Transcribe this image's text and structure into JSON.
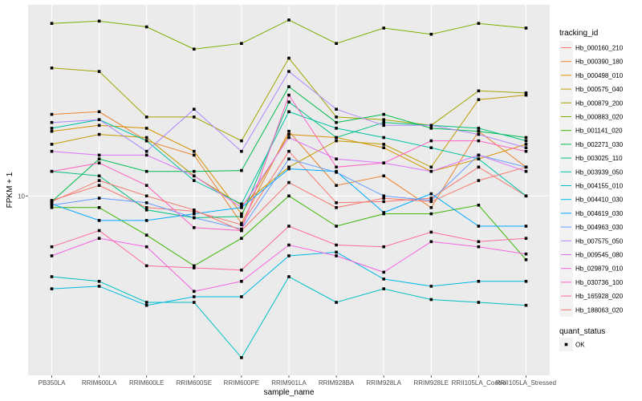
{
  "chart_data": {
    "type": "line",
    "xlabel": "sample_name",
    "ylabel": "FPKM + 1",
    "y_scale": "log",
    "y_ticks": [
      10
    ],
    "y_tick_labels": [
      "10-"
    ],
    "categories": [
      "PB350LA",
      "RRIM600LA",
      "RRIM600LE",
      "RRIM600SE",
      "RRIM600PE",
      "RRIM901LA",
      "RRIM928BA",
      "RRIM928LA",
      "RRIM928LE",
      "RRII105LA_Control",
      "RRII105LA_Stressed"
    ],
    "category_tick_labels": [
      "PB350LA",
      "RRIM600LA",
      "RRIM600LE",
      "RRIM600SE",
      "RRIM600PE",
      "RRIM901LA",
      "RRIM928BA",
      "RRIM928LA",
      "RRIM928LE",
      "RRII105LA_Contro",
      "RRII105LA_Stressed"
    ],
    "legend_title": "tracking_id",
    "legend_position": "right",
    "grid": true,
    "series": [
      {
        "name": "Hb_000160_210",
        "color": "#F8766D",
        "values": [
          9.6,
          11.0,
          9.0,
          8.7,
          7.7,
          15.0,
          9.4,
          9.5,
          9.8,
          13.0,
          10.0
        ]
      },
      {
        "name": "Hb_000390_180",
        "color": "#EA8331",
        "values": [
          21.0,
          21.5,
          16.5,
          14.5,
          7.8,
          18.0,
          11.0,
          12.0,
          9.0,
          18.0,
          13.0
        ]
      },
      {
        "name": "Hb_000498_010",
        "color": "#D89000",
        "values": [
          18.0,
          19.0,
          18.5,
          15.0,
          8.5,
          17.5,
          17.0,
          15.5,
          12.5,
          14.0,
          16.0
        ]
      },
      {
        "name": "Hb_000575_040",
        "color": "#C09B00",
        "values": [
          16.0,
          17.5,
          17.0,
          12.0,
          9.2,
          13.0,
          16.5,
          16.0,
          13.0,
          24.0,
          25.0
        ]
      },
      {
        "name": "Hb_000879_200",
        "color": "#A3A500",
        "values": [
          32.0,
          31.0,
          20.5,
          20.5,
          16.5,
          35.0,
          20.5,
          20.0,
          19.0,
          26.0,
          25.5
        ]
      },
      {
        "name": "Hb_000883_020",
        "color": "#7CAE00",
        "values": [
          48.0,
          49.0,
          46.5,
          38.0,
          40.0,
          49.5,
          40.0,
          46.0,
          43.5,
          48.0,
          46.0
        ]
      },
      {
        "name": "Hb_001141_020",
        "color": "#39B600",
        "values": [
          9.0,
          9.0,
          7.0,
          5.3,
          6.8,
          10.0,
          7.6,
          8.5,
          8.5,
          9.2,
          5.6
        ]
      },
      {
        "name": "Hb_002271_030",
        "color": "#00BB4E",
        "values": [
          9.5,
          14.0,
          12.5,
          12.5,
          12.6,
          27.0,
          19.5,
          21.0,
          18.5,
          18.0,
          17.0
        ]
      },
      {
        "name": "Hb_003025_110",
        "color": "#00BF7D",
        "values": [
          12.5,
          12.0,
          8.8,
          8.2,
          8.3,
          23.5,
          17.0,
          19.5,
          19.0,
          18.5,
          16.5
        ]
      },
      {
        "name": "Hb_003939_050",
        "color": "#00C1A3",
        "values": [
          18.5,
          20.0,
          16.5,
          11.5,
          9.3,
          21.5,
          18.5,
          17.0,
          15.5,
          14.0,
          10.0
        ]
      },
      {
        "name": "Hb_004155_010",
        "color": "#00BFC4",
        "values": [
          4.8,
          4.6,
          3.8,
          3.8,
          2.3,
          4.8,
          3.8,
          4.3,
          3.9,
          3.8,
          3.7
        ]
      },
      {
        "name": "Hb_004410_030",
        "color": "#00B8E7",
        "values": [
          4.3,
          4.4,
          3.7,
          4.0,
          4.0,
          5.8,
          6.0,
          4.7,
          4.4,
          4.6,
          4.6
        ]
      },
      {
        "name": "Hb_004619_030",
        "color": "#00A9FF",
        "values": [
          9.3,
          8.0,
          8.0,
          8.5,
          9.0,
          12.8,
          12.5,
          8.6,
          10.2,
          7.6,
          7.6
        ]
      },
      {
        "name": "Hb_004963_030",
        "color": "#619CFF",
        "values": [
          9.2,
          9.8,
          9.4,
          8.2,
          7.4,
          14.0,
          12.4,
          10.0,
          9.6,
          14.5,
          13.0
        ]
      },
      {
        "name": "Hb_007575_050",
        "color": "#AE87FF",
        "values": [
          19.5,
          20.0,
          15.0,
          22.0,
          15.0,
          31.0,
          22.0,
          19.0,
          19.0,
          17.5,
          15.5
        ]
      },
      {
        "name": "Hb_009545_080",
        "color": "#DB72FB",
        "values": [
          15.0,
          14.5,
          14.5,
          12.0,
          9.0,
          17.0,
          14.0,
          13.5,
          12.5,
          14.5,
          12.5
        ]
      },
      {
        "name": "Hb_029879_010",
        "color": "#F564E3",
        "values": [
          5.8,
          6.8,
          6.3,
          4.2,
          4.6,
          6.4,
          5.8,
          5.0,
          6.6,
          6.3,
          5.9
        ]
      },
      {
        "name": "Hb_030736_100",
        "color": "#FF61C3",
        "values": [
          12.5,
          13.5,
          11.0,
          7.5,
          7.3,
          25.0,
          13.0,
          13.5,
          16.5,
          16.5,
          15.0
        ]
      },
      {
        "name": "Hb_165928_020",
        "color": "#FF67A4",
        "values": [
          6.3,
          7.3,
          5.3,
          5.2,
          5.1,
          7.6,
          6.4,
          6.3,
          7.2,
          6.6,
          6.8
        ]
      },
      {
        "name": "Hb_188063_020",
        "color": "#F8766D",
        "values": [
          9.5,
          11.5,
          10.0,
          8.8,
          7.3,
          11.3,
          9.0,
          9.8,
          9.5,
          11.5,
          13.0
        ]
      }
    ],
    "shape_legend": {
      "title": "quant_status",
      "items": [
        {
          "label": "OK"
        }
      ]
    }
  }
}
